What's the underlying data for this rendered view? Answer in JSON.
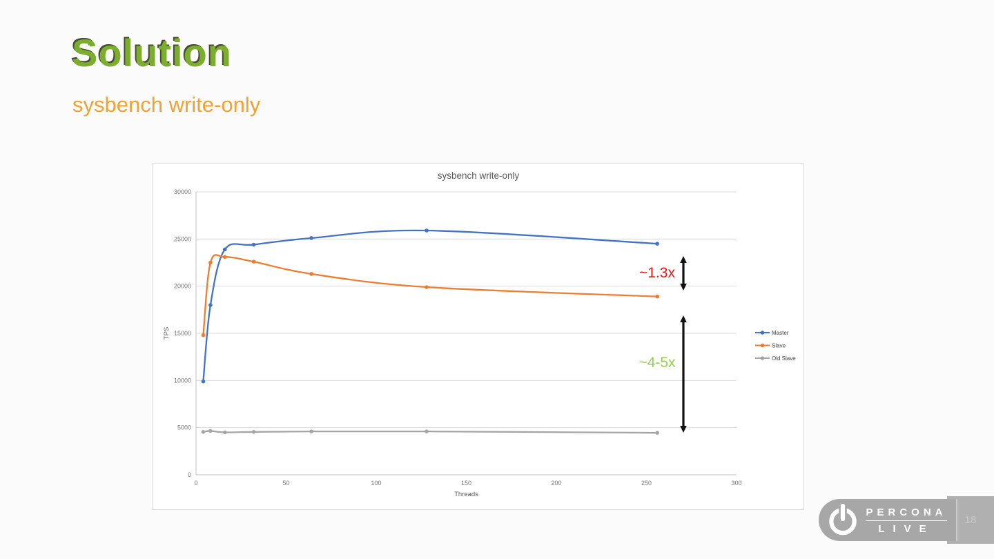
{
  "slide": {
    "title": "Solution",
    "subtitle": "sysbench write-only",
    "page_number": "18",
    "title_color": "#7cad2e",
    "subtitle_color": "#f0a332"
  },
  "chart_data": {
    "type": "line",
    "title": "sysbench write-only",
    "xlabel": "Threads",
    "ylabel": "TPS",
    "x": [
      4,
      8,
      16,
      32,
      64,
      128,
      256
    ],
    "series": [
      {
        "name": "Master",
        "color": "#4472C4",
        "values": [
          9900,
          18000,
          23900,
          24400,
          25100,
          25900,
          24500
        ]
      },
      {
        "name": "Slave",
        "color": "#ED7D31",
        "values": [
          14800,
          22500,
          23100,
          22600,
          21300,
          19900,
          18900
        ]
      },
      {
        "name": "Old Slave",
        "color": "#A5A5A5",
        "values": [
          4550,
          4650,
          4500,
          4550,
          4600,
          4600,
          4450
        ]
      }
    ],
    "xlim": [
      0,
      300
    ],
    "ylim": [
      0,
      30000
    ],
    "x_ticks": [
      0,
      50,
      100,
      150,
      200,
      250,
      300
    ],
    "y_ticks": [
      0,
      5000,
      10000,
      15000,
      20000,
      25000,
      30000
    ],
    "grid": "horizontal",
    "legend_position": "right",
    "marker": "circle",
    "smooth_lines": true
  },
  "annotations": {
    "ratio_small": {
      "label": "~1.3x",
      "color": "#f01414"
    },
    "ratio_large": {
      "label": "~4-5x",
      "color": "#92D050"
    },
    "arrow_color": "#111111"
  },
  "logo": {
    "icon": "power-icon",
    "line1": "PERCONA",
    "line2": "LIVE"
  }
}
